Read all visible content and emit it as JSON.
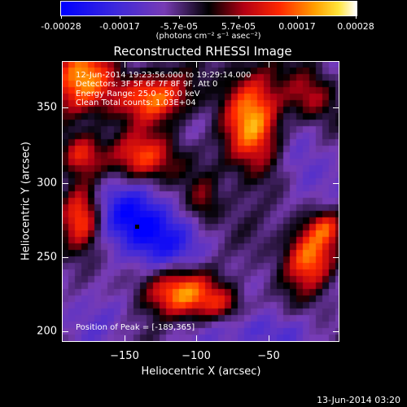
{
  "colorbar": {
    "tick_labels": [
      "-0.00028",
      "-0.00017",
      "-5.7e-05",
      "5.7e-05",
      "0.00017",
      "0.00028"
    ],
    "units_label": "(photons cm⁻² s⁻¹ asec⁻²)"
  },
  "title": "Reconstructed RHESSI Image",
  "annotations": {
    "time_range": "12-Jun-2014 19:23:56.000 to 19:29:14.000",
    "detectors": "Detectors: 3F 5F 6F 7F 8F 9F, Att 0",
    "energy": "Energy Range: 25.0 - 50.0 keV",
    "clean": "Clean    Total counts: 1.03E+04",
    "peak": "Position of Peak = [-189,365]"
  },
  "axes": {
    "x_label": "Heliocentric X (arcsec)",
    "y_label": "Heliocentric Y (arcsec)",
    "x_ticks": [
      "−150",
      "−100",
      "−50"
    ],
    "y_ticks": [
      "350",
      "300",
      "250",
      "200"
    ]
  },
  "timestamp": "13-Jun-2014 03:20"
}
